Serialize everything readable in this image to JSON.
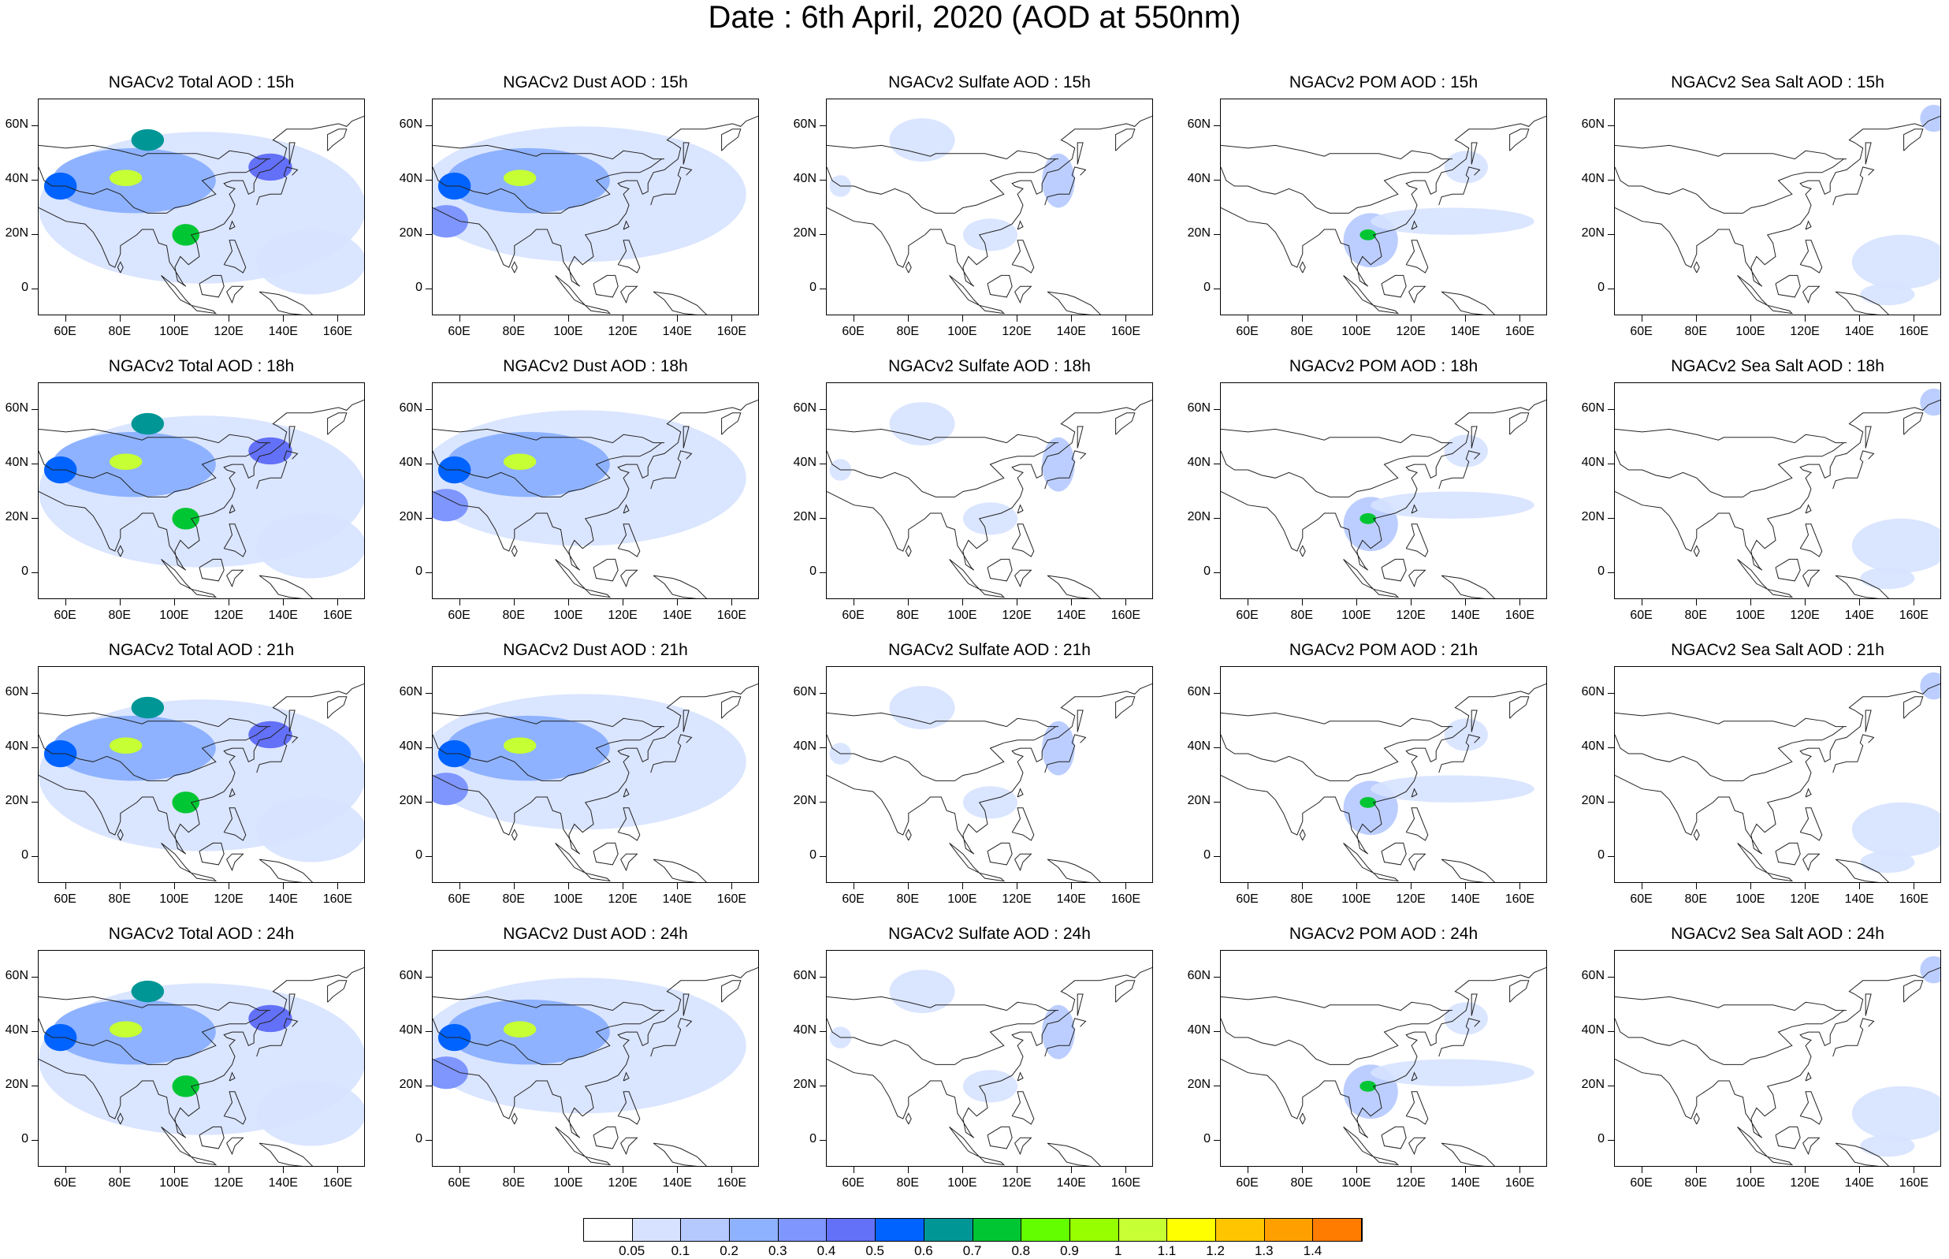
{
  "title": "Date : 6th April, 2020 (AOD at 550nm)",
  "columns": [
    "Total",
    "Dust",
    "Sulfate",
    "POM",
    "SeaSalt"
  ],
  "rows": [
    "15h",
    "18h",
    "21h",
    "24h"
  ],
  "panel_titles": [
    [
      "NGACv2 Total AOD : 15h",
      "NGACv2 Dust AOD : 15h",
      "NGACv2 Sulfate AOD : 15h",
      "NGACv2 POM AOD : 15h",
      "NGACv2 Sea Salt AOD : 15h"
    ],
    [
      "NGACv2 Total AOD : 18h",
      "NGACv2 Dust AOD : 18h",
      "NGACv2 Sulfate AOD : 18h",
      "NGACv2 POM AOD : 18h",
      "NGACv2 Sea Salt AOD : 18h"
    ],
    [
      "NGACv2 Total AOD : 21h",
      "NGACv2 Dust AOD : 21h",
      "NGACv2 Sulfate AOD : 21h",
      "NGACv2 POM AOD : 21h",
      "NGACv2 Sea Salt AOD : 21h"
    ],
    [
      "NGACv2 Total AOD : 24h",
      "NGACv2 Dust AOD : 24h",
      "NGACv2 Sulfate AOD : 24h",
      "NGACv2 POM AOD : 24h",
      "NGACv2 Sea Salt  AOD : 24h"
    ]
  ],
  "lat_labels": [
    "60N",
    "40N",
    "20N",
    "0"
  ],
  "lat_values": [
    60,
    40,
    20,
    0
  ],
  "lon_labels": [
    "60E",
    "80E",
    "100E",
    "120E",
    "140E",
    "160E"
  ],
  "lon_values": [
    60,
    80,
    100,
    120,
    140,
    160
  ],
  "map_extent": {
    "lon": [
      50,
      170
    ],
    "lat": [
      -10,
      70
    ]
  },
  "colorbar": {
    "labels": [
      "0.05",
      "0.1",
      "0.2",
      "0.3",
      "0.4",
      "0.5",
      "0.6",
      "0.7",
      "0.8",
      "0.9",
      "1",
      "1.1",
      "1.2",
      "1.3",
      "1.4"
    ],
    "colors": [
      "#ffffff",
      "#d6e2ff",
      "#b5c9ff",
      "#8eb2ff",
      "#7f96ff",
      "#6370f8",
      "#0063ff",
      "#009696",
      "#00c633",
      "#63ff00",
      "#96ff00",
      "#c6ff33",
      "#ffff00",
      "#ffc600",
      "#ffa000",
      "#ff7c00",
      "#ff1900"
    ]
  },
  "features": {
    "Total": [
      {
        "lon": 110,
        "lat": 30,
        "rx": 60,
        "ry": 28,
        "level": 1
      },
      {
        "lon": 85,
        "lat": 40,
        "rx": 30,
        "ry": 12,
        "level": 3
      },
      {
        "lon": 82,
        "lat": 41,
        "rx": 6,
        "ry": 3,
        "level": 11
      },
      {
        "lon": 90,
        "lat": 55,
        "rx": 6,
        "ry": 4,
        "level": 7
      },
      {
        "lon": 58,
        "lat": 38,
        "rx": 6,
        "ry": 5,
        "level": 6
      },
      {
        "lon": 135,
        "lat": 45,
        "rx": 8,
        "ry": 5,
        "level": 5
      },
      {
        "lon": 104,
        "lat": 20,
        "rx": 5,
        "ry": 4,
        "level": 8
      },
      {
        "lon": 150,
        "lat": 10,
        "rx": 20,
        "ry": 12,
        "level": 1
      }
    ],
    "Dust": [
      {
        "lon": 105,
        "lat": 35,
        "rx": 60,
        "ry": 25,
        "level": 1
      },
      {
        "lon": 85,
        "lat": 40,
        "rx": 30,
        "ry": 12,
        "level": 3
      },
      {
        "lon": 82,
        "lat": 41,
        "rx": 6,
        "ry": 3,
        "level": 11
      },
      {
        "lon": 58,
        "lat": 38,
        "rx": 6,
        "ry": 5,
        "level": 6
      },
      {
        "lon": 55,
        "lat": 25,
        "rx": 8,
        "ry": 6,
        "level": 4
      }
    ],
    "Sulfate": [
      {
        "lon": 85,
        "lat": 55,
        "rx": 12,
        "ry": 8,
        "level": 1
      },
      {
        "lon": 135,
        "lat": 40,
        "rx": 6,
        "ry": 10,
        "level": 2
      },
      {
        "lon": 110,
        "lat": 20,
        "rx": 10,
        "ry": 6,
        "level": 1
      },
      {
        "lon": 55,
        "lat": 38,
        "rx": 4,
        "ry": 4,
        "level": 1
      }
    ],
    "POM": [
      {
        "lon": 105,
        "lat": 18,
        "rx": 10,
        "ry": 10,
        "level": 2
      },
      {
        "lon": 104,
        "lat": 20,
        "rx": 3,
        "ry": 2,
        "level": 8
      },
      {
        "lon": 135,
        "lat": 25,
        "rx": 30,
        "ry": 5,
        "level": 1
      },
      {
        "lon": 140,
        "lat": 45,
        "rx": 8,
        "ry": 6,
        "level": 1
      }
    ],
    "SeaSalt": [
      {
        "lon": 167,
        "lat": 63,
        "rx": 5,
        "ry": 5,
        "level": 2
      },
      {
        "lon": 155,
        "lat": 10,
        "rx": 18,
        "ry": 10,
        "level": 1
      },
      {
        "lon": 150,
        "lat": -2,
        "rx": 10,
        "ry": 4,
        "level": 1
      }
    ]
  }
}
